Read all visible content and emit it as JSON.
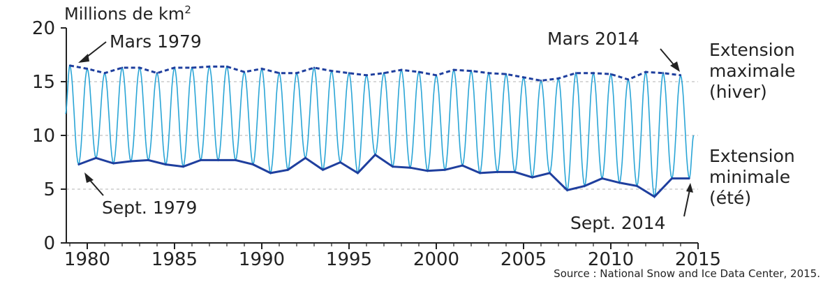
{
  "chart_data": {
    "type": "line",
    "ylabel": "Millions de km",
    "ylabel_sup": "2",
    "ylim": [
      0,
      20
    ],
    "xlim": [
      1978.8,
      2015
    ],
    "yticks": [
      0,
      5,
      10,
      15,
      20
    ],
    "ytick_labels": [
      "0",
      "5",
      "10",
      "15",
      "20"
    ],
    "xticks": [
      1980,
      1985,
      1990,
      1995,
      2000,
      2005,
      2010,
      2015
    ],
    "xtick_labels": [
      "1980",
      "1985",
      "1990",
      "1995",
      "2000",
      "2005",
      "2010",
      "2015"
    ],
    "grid": "dashed at y = 5, 10, 15",
    "colors": {
      "monthly": "#2aa5d6",
      "extremes": "#1f3f9e",
      "grid": "#b0b0b0",
      "axis": "#222222"
    },
    "series": [
      {
        "name": "Extension maximale (hiver)",
        "style": "dashed",
        "x": [
          1979,
          1980,
          1981,
          1982,
          1983,
          1984,
          1985,
          1986,
          1987,
          1988,
          1989,
          1990,
          1991,
          1992,
          1993,
          1994,
          1995,
          1996,
          1997,
          1998,
          1999,
          2000,
          2001,
          2002,
          2003,
          2004,
          2005,
          2006,
          2007,
          2008,
          2009,
          2010,
          2011,
          2012,
          2013,
          2014
        ],
        "values": [
          16.5,
          16.2,
          15.8,
          16.3,
          16.3,
          15.8,
          16.3,
          16.3,
          16.4,
          16.4,
          15.9,
          16.2,
          15.8,
          15.8,
          16.3,
          16.0,
          15.8,
          15.6,
          15.8,
          16.1,
          15.9,
          15.6,
          16.1,
          16.0,
          15.8,
          15.7,
          15.4,
          15.1,
          15.3,
          15.8,
          15.8,
          15.7,
          15.2,
          15.9,
          15.8,
          15.6
        ]
      },
      {
        "name": "Extension minimale (été)",
        "style": "solid",
        "x": [
          1979,
          1980,
          1981,
          1982,
          1983,
          1984,
          1985,
          1986,
          1987,
          1988,
          1989,
          1990,
          1991,
          1992,
          1993,
          1994,
          1995,
          1996,
          1997,
          1998,
          1999,
          2000,
          2001,
          2002,
          2003,
          2004,
          2005,
          2006,
          2007,
          2008,
          2009,
          2010,
          2011,
          2012,
          2013,
          2014
        ],
        "values": [
          7.3,
          7.9,
          7.4,
          7.6,
          7.7,
          7.3,
          7.1,
          7.7,
          7.7,
          7.7,
          7.3,
          6.5,
          6.8,
          7.9,
          6.8,
          7.5,
          6.5,
          8.2,
          7.1,
          7.0,
          6.7,
          6.8,
          7.2,
          6.5,
          6.6,
          6.6,
          6.1,
          6.5,
          4.9,
          5.3,
          6.0,
          5.6,
          5.3,
          4.3,
          6.0,
          6.0
        ]
      },
      {
        "name": "",
        "style": "monthly oscillation between winter maximum and summer minimum",
        "start_value": 12.0,
        "end_value": 10.0,
        "description_of_shape": "sinusoidal seasonal cycle"
      }
    ],
    "annotations": [
      {
        "text": "Mars 1979",
        "x": 1979,
        "y": 16.5
      },
      {
        "text": "Sept. 1979",
        "x": 1979,
        "y": 7.3
      },
      {
        "text": "Mars 2014",
        "x": 2014,
        "y": 15.6
      },
      {
        "text": "Sept. 2014",
        "x": 2014,
        "y": 6.0
      }
    ],
    "legend_labels": {
      "max": [
        "Extension",
        "maximale",
        "(hiver)"
      ],
      "min": [
        "Extension",
        "minimale",
        "(été)"
      ]
    },
    "source": "Source : National Snow and Ice Data Center, 2015."
  }
}
